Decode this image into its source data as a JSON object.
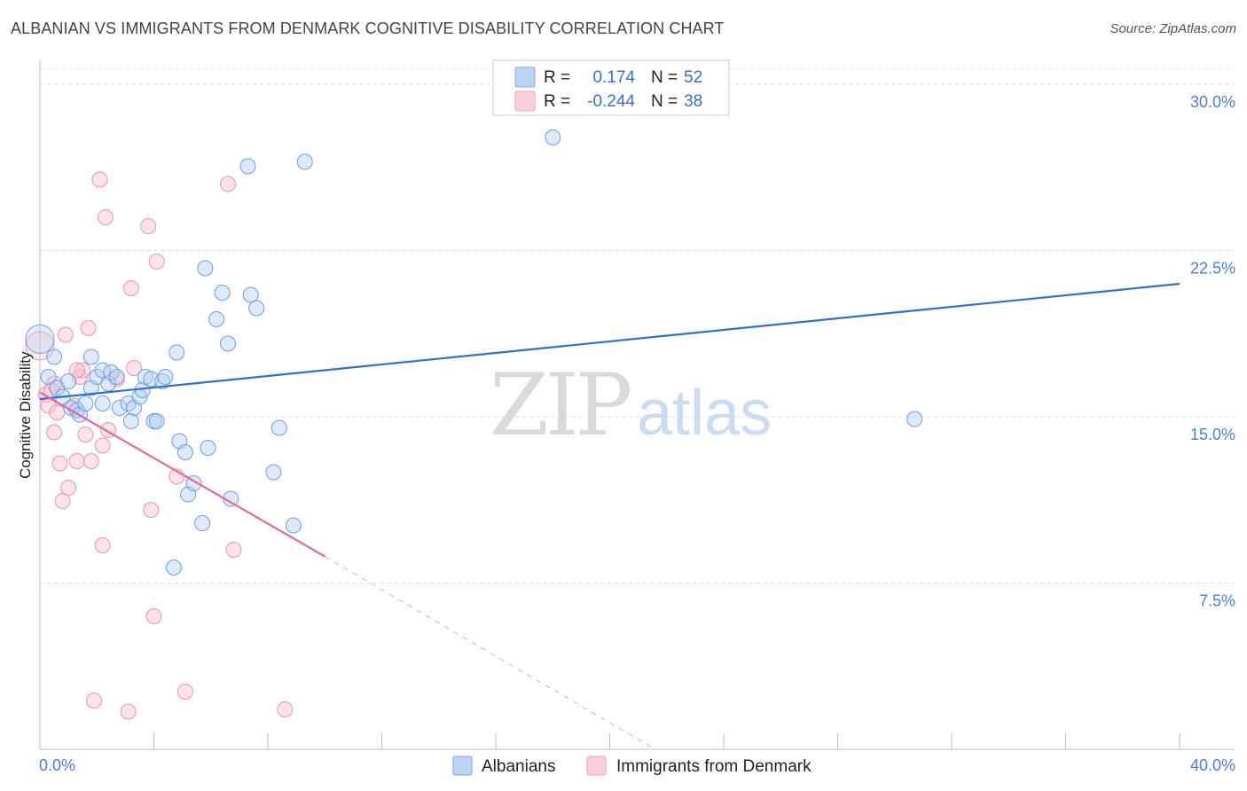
{
  "header": {
    "title": "ALBANIAN VS IMMIGRANTS FROM DENMARK COGNITIVE DISABILITY CORRELATION CHART",
    "source": "Source: ZipAtlas.com"
  },
  "watermark": {
    "zip": "ZIP",
    "atlas": "atlas"
  },
  "legend": {
    "r_label": "R =",
    "n_label": "N =",
    "rows": [
      {
        "r": "0.174",
        "n": "52"
      },
      {
        "r": "-0.244",
        "n": "38"
      }
    ]
  },
  "chart_data": {
    "type": "scatter",
    "title": "ALBANIAN VS IMMIGRANTS FROM DENMARK COGNITIVE DISABILITY CORRELATION CHART",
    "xlabel": "",
    "ylabel": "Cognitive Disability",
    "xlim": [
      0,
      40
    ],
    "ylim": [
      0,
      31
    ],
    "x_tick_labels": [
      "0.0%",
      "40.0%"
    ],
    "y_ticks": [
      7.5,
      15.0,
      22.5,
      30.0
    ],
    "y_tick_labels": [
      "7.5%",
      "15.0%",
      "22.5%",
      "30.0%"
    ],
    "grid": true,
    "legend_position": "top-center",
    "series": [
      {
        "name": "Albanians",
        "color": "#7aa8e8",
        "line_color": "#2f6fcc",
        "r": 0.174,
        "n": 52,
        "trend": {
          "x": [
            0,
            40
          ],
          "y": [
            15.8,
            21.0
          ],
          "dashed_from": null
        },
        "points": [
          [
            0.0,
            18.5
          ],
          [
            0.3,
            16.8
          ],
          [
            0.5,
            17.7
          ],
          [
            0.6,
            16.3
          ],
          [
            0.8,
            15.9
          ],
          [
            1.0,
            16.6
          ],
          [
            1.1,
            15.4
          ],
          [
            1.3,
            15.3
          ],
          [
            1.4,
            15.1
          ],
          [
            1.6,
            15.6
          ],
          [
            1.8,
            16.3
          ],
          [
            1.8,
            17.7
          ],
          [
            2.0,
            16.8
          ],
          [
            2.2,
            15.6
          ],
          [
            2.2,
            17.1
          ],
          [
            2.4,
            16.5
          ],
          [
            2.5,
            17.0
          ],
          [
            2.7,
            16.8
          ],
          [
            2.8,
            15.4
          ],
          [
            3.1,
            15.6
          ],
          [
            3.2,
            14.8
          ],
          [
            3.3,
            15.4
          ],
          [
            3.5,
            15.9
          ],
          [
            3.6,
            16.2
          ],
          [
            3.7,
            16.8
          ],
          [
            3.9,
            16.7
          ],
          [
            4.0,
            14.8
          ],
          [
            4.1,
            14.8
          ],
          [
            4.3,
            16.6
          ],
          [
            4.4,
            16.8
          ],
          [
            4.7,
            8.2
          ],
          [
            4.8,
            17.9
          ],
          [
            4.9,
            13.9
          ],
          [
            5.1,
            13.4
          ],
          [
            5.2,
            11.5
          ],
          [
            5.4,
            12.0
          ],
          [
            5.7,
            10.2
          ],
          [
            5.8,
            21.7
          ],
          [
            5.9,
            13.6
          ],
          [
            6.2,
            19.4
          ],
          [
            6.4,
            20.6
          ],
          [
            6.6,
            18.3
          ],
          [
            6.7,
            11.3
          ],
          [
            7.3,
            26.3
          ],
          [
            7.4,
            20.5
          ],
          [
            7.6,
            19.9
          ],
          [
            8.2,
            12.5
          ],
          [
            8.4,
            14.5
          ],
          [
            8.9,
            10.1
          ],
          [
            9.3,
            26.5
          ],
          [
            18.0,
            27.6
          ],
          [
            30.7,
            14.9
          ]
        ]
      },
      {
        "name": "Immigrants from Denmark",
        "color": "#f2a0bb",
        "line_color": "#e06b96",
        "r": -0.244,
        "n": 38,
        "trend": {
          "x": [
            0,
            10.0
          ],
          "y": [
            16.1,
            8.7
          ],
          "dashed_from": 10.0,
          "dashed_to": [
            21.6,
            0.0
          ]
        },
        "points": [
          [
            0.0,
            18.2
          ],
          [
            0.2,
            16.0
          ],
          [
            0.3,
            15.5
          ],
          [
            0.5,
            16.5
          ],
          [
            0.5,
            14.3
          ],
          [
            0.7,
            12.9
          ],
          [
            0.8,
            11.2
          ],
          [
            0.9,
            18.7
          ],
          [
            1.0,
            11.8
          ],
          [
            1.2,
            15.5
          ],
          [
            1.3,
            13.0
          ],
          [
            1.4,
            16.8
          ],
          [
            1.5,
            17.1
          ],
          [
            1.6,
            14.2
          ],
          [
            1.7,
            19.0
          ],
          [
            1.8,
            13.0
          ],
          [
            1.9,
            2.2
          ],
          [
            2.1,
            25.7
          ],
          [
            2.2,
            13.7
          ],
          [
            2.2,
            9.2
          ],
          [
            2.3,
            24.0
          ],
          [
            2.4,
            14.4
          ],
          [
            2.7,
            16.7
          ],
          [
            3.1,
            1.7
          ],
          [
            3.2,
            20.8
          ],
          [
            3.3,
            17.2
          ],
          [
            3.8,
            23.6
          ],
          [
            3.9,
            10.8
          ],
          [
            4.0,
            6.0
          ],
          [
            4.1,
            22.0
          ],
          [
            4.8,
            12.3
          ],
          [
            5.1,
            2.6
          ],
          [
            6.6,
            25.5
          ],
          [
            6.8,
            9.0
          ],
          [
            8.6,
            1.8
          ],
          [
            1.3,
            17.1
          ],
          [
            0.4,
            16.2
          ],
          [
            0.6,
            15.2
          ]
        ]
      }
    ]
  }
}
